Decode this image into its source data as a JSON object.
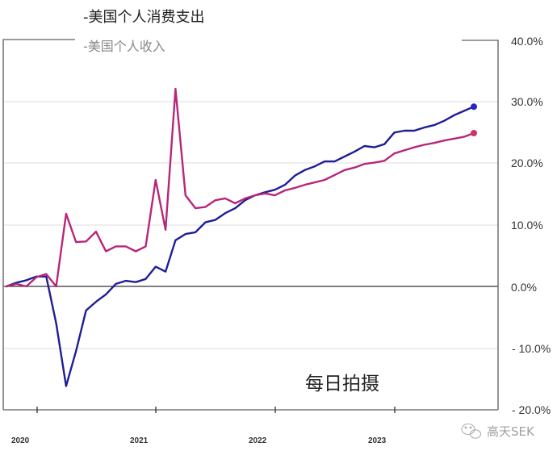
{
  "legend": {
    "spending": "-美国个人消费支出",
    "income": "-美国个人收入"
  },
  "annotation": {
    "text": "每日拍摄"
  },
  "watermark": {
    "icon": "wechat-icon",
    "text": "高天SEK"
  },
  "axes": {
    "y_ticks": [
      "40.0%",
      "30.0%",
      "20.0%",
      "10.0%",
      "0.0%",
      "- 10.0%",
      "- 20.0%"
    ],
    "x_ticks": [
      "2020",
      "2021",
      "2022",
      "2023"
    ]
  },
  "colors": {
    "spending": "#1e1e96",
    "spending_dot": "#2626c8",
    "income": "#b8267a",
    "income_dot": "#cc3366"
  },
  "chart_data": {
    "type": "line",
    "title": "",
    "xlabel": "",
    "ylabel": "",
    "ylim": [
      -20,
      40
    ],
    "y_ticks": [
      40,
      30,
      20,
      10,
      0,
      -10,
      -20
    ],
    "y_tick_labels": [
      "40.0%",
      "30.0%",
      "20.0%",
      "10.0%",
      "0.0%",
      "- 10.0%",
      "- 20.0%"
    ],
    "x_tick_labels": [
      "2020",
      "2021",
      "2022",
      "2023"
    ],
    "grid": true,
    "legend_position": "top-left",
    "legend": [
      "-美国个人消费支出",
      "-美国个人收入"
    ],
    "annotations": [
      "每日拍摄"
    ],
    "x": [
      "2019-10",
      "2019-11",
      "2019-12",
      "2020-01",
      "2020-02",
      "2020-03",
      "2020-04",
      "2020-05",
      "2020-06",
      "2020-07",
      "2020-08",
      "2020-09",
      "2020-10",
      "2020-11",
      "2020-12",
      "2021-01",
      "2021-02",
      "2021-03",
      "2021-04",
      "2021-05",
      "2021-06",
      "2021-07",
      "2021-08",
      "2021-09",
      "2021-10",
      "2021-11",
      "2021-12",
      "2022-01",
      "2022-02",
      "2022-03",
      "2022-04",
      "2022-05",
      "2022-06",
      "2022-07",
      "2022-08",
      "2022-09",
      "2022-10",
      "2022-11",
      "2022-12",
      "2023-01",
      "2023-02",
      "2023-03",
      "2023-04",
      "2023-05",
      "2023-06",
      "2023-07",
      "2023-08",
      "2023-09"
    ],
    "series": [
      {
        "name": "美国个人消费支出",
        "color": "#1e1e96",
        "values": [
          0.0,
          0.6,
          1.0,
          1.6,
          1.6,
          -6.0,
          -16.2,
          -10.5,
          -3.9,
          -2.5,
          -1.3,
          0.4,
          0.9,
          0.7,
          1.2,
          3.2,
          2.4,
          7.5,
          8.5,
          8.8,
          10.4,
          10.8,
          11.9,
          12.7,
          14.0,
          14.8,
          15.3,
          15.7,
          16.5,
          18.0,
          18.9,
          19.5,
          20.3,
          20.3,
          21.1,
          21.9,
          22.8,
          22.6,
          23.1,
          25.0,
          25.3,
          25.3,
          25.8,
          26.2,
          26.9,
          27.8,
          28.5,
          29.2
        ]
      },
      {
        "name": "美国个人收入",
        "color": "#b8267a",
        "values": [
          0.0,
          0.4,
          0.0,
          1.5,
          2.0,
          0.0,
          11.8,
          7.2,
          7.3,
          8.9,
          5.7,
          6.5,
          6.5,
          5.7,
          6.5,
          17.3,
          9.2,
          32.1,
          14.8,
          12.7,
          12.9,
          14.0,
          14.3,
          13.5,
          14.3,
          14.8,
          15.1,
          14.8,
          15.6,
          16.0,
          16.5,
          16.9,
          17.3,
          18.1,
          18.9,
          19.3,
          19.9,
          20.1,
          20.4,
          21.6,
          22.1,
          22.6,
          23.0,
          23.3,
          23.7,
          24.0,
          24.3,
          24.9
        ]
      }
    ]
  }
}
